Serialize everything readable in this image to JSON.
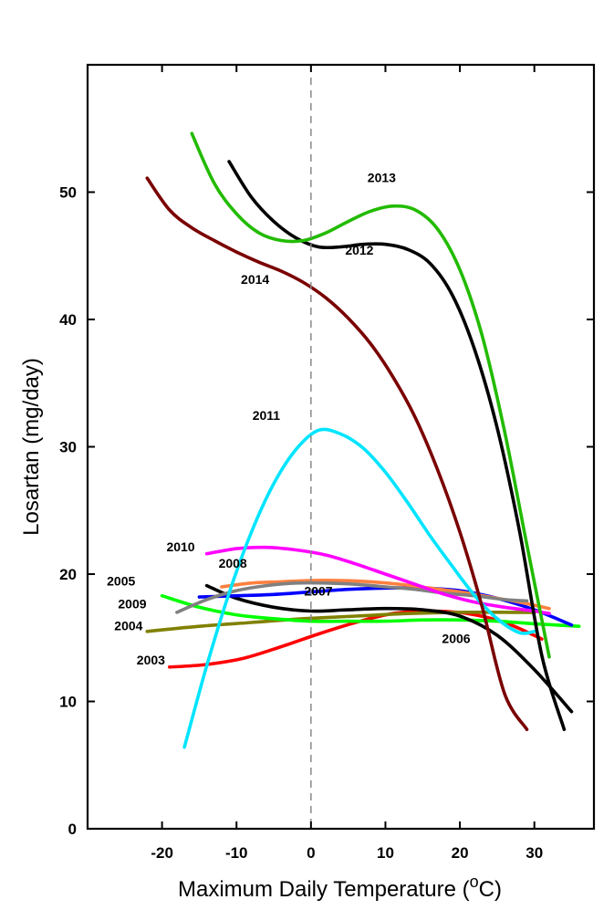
{
  "chart_data": {
    "type": "line",
    "xlabel": "Maximum Daily Temperature (",
    "xlabel_unit_sup": "o",
    "xlabel_unit_tail": "C)",
    "ylabel": "Losartan (mg/day)",
    "xlim": [
      -30,
      38
    ],
    "ylim": [
      0,
      60
    ],
    "xticks": [
      -20,
      -10,
      0,
      10,
      20,
      30
    ],
    "yticks": [
      0,
      10,
      20,
      30,
      40,
      50
    ],
    "reference_line_x": 0,
    "grid": false,
    "series": [
      {
        "name": "2003",
        "color": "#ff0000",
        "x": [
          -19,
          -14,
          -9,
          -4,
          1,
          6,
          11,
          16,
          21,
          26,
          31
        ],
        "y": [
          12.7,
          12.9,
          13.4,
          14.3,
          15.3,
          16.2,
          16.9,
          17.1,
          16.9,
          16.2,
          14.9
        ]
      },
      {
        "name": "2004",
        "color": "#808000",
        "x": [
          -22,
          -15,
          -8,
          -1,
          6,
          13,
          20,
          27,
          30
        ],
        "y": [
          15.5,
          15.9,
          16.2,
          16.5,
          16.7,
          16.9,
          17.0,
          17.0,
          17.0
        ]
      },
      {
        "name": "2005",
        "color": "#00ff00",
        "x": [
          -20,
          -15,
          -10,
          -5,
          0,
          5,
          10,
          15,
          20,
          25,
          30,
          36
        ],
        "y": [
          18.3,
          17.4,
          16.8,
          16.5,
          16.3,
          16.3,
          16.3,
          16.4,
          16.4,
          16.3,
          16.1,
          15.9
        ]
      },
      {
        "name": "2006",
        "color": "#000000",
        "x": [
          -14,
          -10,
          -5,
          0,
          5,
          10,
          15,
          20,
          25,
          30,
          35
        ],
        "y": [
          19.1,
          18.1,
          17.4,
          17.1,
          17.2,
          17.3,
          17.2,
          16.7,
          15.2,
          12.5,
          9.2
        ]
      },
      {
        "name": "2007",
        "color": "#0000ff",
        "x": [
          -15,
          -10,
          -5,
          0,
          5,
          10,
          15,
          20,
          25,
          30,
          35
        ],
        "y": [
          18.2,
          18.3,
          18.4,
          18.6,
          18.8,
          18.9,
          18.9,
          18.7,
          18.1,
          17.2,
          16.0
        ]
      },
      {
        "name": "2008",
        "color": "#ff8040",
        "x": [
          -12,
          -8,
          -4,
          0,
          4,
          8,
          12,
          16,
          20,
          24,
          28,
          32
        ],
        "y": [
          19.0,
          19.3,
          19.4,
          19.5,
          19.5,
          19.4,
          19.2,
          18.9,
          18.6,
          18.2,
          17.8,
          17.3
        ]
      },
      {
        "name": "2009",
        "color": "#808080",
        "x": [
          -18,
          -14,
          -10,
          -6,
          -2,
          2,
          6,
          10,
          14,
          18,
          22,
          26,
          29
        ],
        "y": [
          17.0,
          18.0,
          18.7,
          19.1,
          19.3,
          19.3,
          19.2,
          19.0,
          18.8,
          18.5,
          18.3,
          18.0,
          17.9
        ]
      },
      {
        "name": "2010",
        "color": "#ff00ff",
        "x": [
          -14,
          -10,
          -6,
          -2,
          2,
          6,
          10,
          14,
          18,
          22,
          26,
          30,
          32
        ],
        "y": [
          21.6,
          22.0,
          22.1,
          21.9,
          21.5,
          20.8,
          20.0,
          19.2,
          18.4,
          17.8,
          17.4,
          17.1,
          16.9
        ]
      },
      {
        "name": "2011",
        "color": "#00e5ff",
        "x": [
          -17,
          -14,
          -11,
          -8,
          -5,
          -2,
          1,
          4,
          7,
          10,
          13,
          16,
          19,
          22,
          25,
          28,
          30
        ],
        "y": [
          6.4,
          12.8,
          18.5,
          23.3,
          27.1,
          29.8,
          31.3,
          31.0,
          29.9,
          28.0,
          25.6,
          23.0,
          20.6,
          18.3,
          16.5,
          15.4,
          15.5
        ]
      },
      {
        "name": "2012",
        "color": "#000000",
        "x": [
          -11,
          -8,
          -5,
          -2,
          1,
          4,
          7,
          10,
          13,
          16,
          19,
          22,
          25,
          28,
          31,
          34
        ],
        "y": [
          52.4,
          49.6,
          47.7,
          46.4,
          45.7,
          45.7,
          45.9,
          45.9,
          45.5,
          44.4,
          41.9,
          37.6,
          31.5,
          23.4,
          13.6,
          7.8
        ]
      },
      {
        "name": "2013",
        "color": "#22bb00",
        "x": [
          -16,
          -13,
          -10,
          -7,
          -4,
          -1,
          2,
          5,
          8,
          11,
          14,
          17,
          20,
          23,
          26,
          29,
          32
        ],
        "y": [
          54.6,
          50.7,
          48.3,
          46.8,
          46.2,
          46.2,
          46.8,
          47.7,
          48.5,
          48.9,
          48.6,
          47.1,
          43.9,
          38.7,
          31.2,
          22.3,
          13.5
        ]
      },
      {
        "name": "2014",
        "color": "#7a0000",
        "x": [
          -22,
          -19,
          -16,
          -13,
          -10,
          -7,
          -4,
          -1,
          2,
          5,
          8,
          11,
          14,
          17,
          20,
          23,
          26,
          29
        ],
        "y": [
          51.1,
          48.6,
          47.2,
          46.2,
          45.3,
          44.5,
          43.8,
          42.9,
          41.7,
          40.1,
          38.1,
          35.5,
          32.3,
          28.2,
          23.3,
          17.4,
          10.6,
          7.8
        ]
      }
    ],
    "annotations": [
      {
        "text": "2003",
        "series": "2003"
      },
      {
        "text": "2004",
        "series": "2004"
      },
      {
        "text": "2005",
        "series": "2005"
      },
      {
        "text": "2006",
        "series": "2006"
      },
      {
        "text": "2007",
        "series": "2007"
      },
      {
        "text": "2008",
        "series": "2008"
      },
      {
        "text": "2009",
        "series": "2009"
      },
      {
        "text": "2010",
        "series": "2010"
      },
      {
        "text": "2011",
        "series": "2011"
      },
      {
        "text": "2012",
        "series": "2012"
      },
      {
        "text": "2013",
        "series": "2013"
      },
      {
        "text": "2014",
        "series": "2014"
      }
    ]
  }
}
